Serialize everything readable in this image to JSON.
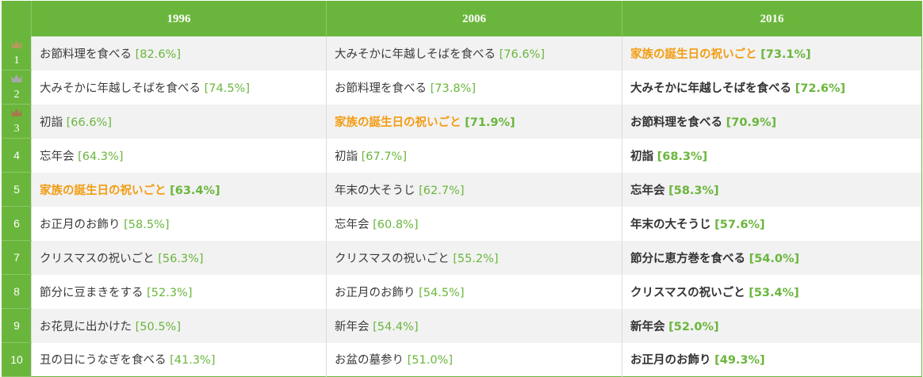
{
  "columns": [
    "1996",
    "2006",
    "2016"
  ],
  "colors": {
    "header_bg": "#6ab63c",
    "percent_text": "#6ab63c",
    "highlight_text": "#f39c12",
    "gold_crown": "#b39a5c",
    "silver_crown": "#a8a8a8",
    "bronze_crown": "#a67a4a"
  },
  "rows": [
    {
      "rank": "1",
      "crown": "gold",
      "c1996": {
        "item": "お節料理を食べる",
        "pct": "[82.6%]"
      },
      "c2006": {
        "item": "大みそかに年越しそばを食べる",
        "pct": "[76.6%]"
      },
      "c2016": {
        "item": "家族の誕生日の祝いごと",
        "pct": "[73.1%]"
      }
    },
    {
      "rank": "2",
      "crown": "silver",
      "c1996": {
        "item": "大みそかに年越しそばを食べる",
        "pct": "[74.5%]"
      },
      "c2006": {
        "item": "お節料理を食べる",
        "pct": "[73.8%]"
      },
      "c2016": {
        "item": "大みそかに年越しそばを食べる",
        "pct": "[72.6%]"
      }
    },
    {
      "rank": "3",
      "crown": "bronze",
      "c1996": {
        "item": "初詣",
        "pct": "[66.6%]"
      },
      "c2006": {
        "item": "家族の誕生日の祝いごと",
        "pct": "[71.9%]"
      },
      "c2016": {
        "item": "お節料理を食べる",
        "pct": "[70.9%]"
      }
    },
    {
      "rank": "4",
      "c1996": {
        "item": "忘年会",
        "pct": "[64.3%]"
      },
      "c2006": {
        "item": "初詣",
        "pct": "[67.7%]"
      },
      "c2016": {
        "item": "初詣",
        "pct": "[68.3%]"
      }
    },
    {
      "rank": "5",
      "c1996": {
        "item": "家族の誕生日の祝いごと",
        "pct": "[63.4%]"
      },
      "c2006": {
        "item": "年末の大そうじ",
        "pct": "[62.7%]"
      },
      "c2016": {
        "item": "忘年会",
        "pct": "[58.3%]"
      }
    },
    {
      "rank": "6",
      "c1996": {
        "item": "お正月のお飾り",
        "pct": "[58.5%]"
      },
      "c2006": {
        "item": "忘年会",
        "pct": "[60.8%]"
      },
      "c2016": {
        "item": "年末の大そうじ",
        "pct": "[57.6%]"
      }
    },
    {
      "rank": "7",
      "c1996": {
        "item": "クリスマスの祝いごと",
        "pct": "[56.3%]"
      },
      "c2006": {
        "item": "クリスマスの祝いごと",
        "pct": "[55.2%]"
      },
      "c2016": {
        "item": "節分に恵方巻を食べる",
        "pct": "[54.0%]"
      }
    },
    {
      "rank": "8",
      "c1996": {
        "item": "節分に豆まきをする",
        "pct": "[52.3%]"
      },
      "c2006": {
        "item": "お正月のお飾り",
        "pct": "[54.5%]"
      },
      "c2016": {
        "item": "クリスマスの祝いごと",
        "pct": "[53.4%]"
      }
    },
    {
      "rank": "9",
      "c1996": {
        "item": "お花見に出かけた",
        "pct": "[50.5%]"
      },
      "c2006": {
        "item": "新年会",
        "pct": "[54.4%]"
      },
      "c2016": {
        "item": "新年会",
        "pct": "[52.0%]"
      }
    },
    {
      "rank": "10",
      "c1996": {
        "item": "丑の日にうなぎを食べる",
        "pct": "[41.3%]"
      },
      "c2006": {
        "item": "お盆の墓参り",
        "pct": "[51.0%]"
      },
      "c2016": {
        "item": "お正月のお飾り",
        "pct": "[49.3%]"
      }
    }
  ]
}
